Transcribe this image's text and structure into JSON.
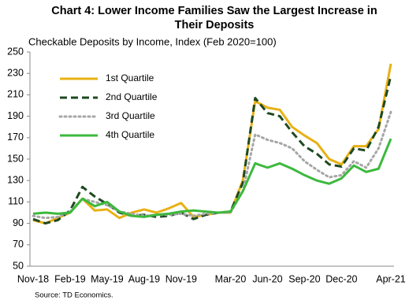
{
  "chart_data": {
    "type": "line",
    "title": [
      "Chart 4: Lower Income Families  Saw the Largest Increase in",
      "Their Deposits"
    ],
    "subtitle": "Checkable Deposits by Income, Index (Feb 2020=100)",
    "source": "Source:  TD Economics.",
    "categories": [
      "Nov-18",
      null,
      null,
      "Feb-19",
      null,
      null,
      "May-19",
      null,
      null,
      "Aug-19",
      null,
      null,
      "Nov-19",
      null,
      null,
      null,
      "Mar-20",
      null,
      null,
      "Jun-20",
      null,
      null,
      "Sep-20",
      null,
      null,
      "Dec-20",
      null,
      null,
      null,
      "Apr-21"
    ],
    "series": [
      {
        "name": "1st Quartile",
        "color": "#e8b115",
        "style": "solid",
        "values": [
          93,
          90,
          95,
          100,
          113,
          102,
          103,
          95,
          100,
          103,
          100,
          104,
          109,
          96,
          98,
          100,
          100,
          130,
          204,
          198,
          196,
          180,
          172,
          165,
          150,
          145,
          162,
          162,
          178,
          239
        ]
      },
      {
        "name": "2nd Quartile",
        "color": "#1e4a22",
        "style": "dashed",
        "values": [
          94,
          90,
          93,
          102,
          124,
          115,
          108,
          100,
          97,
          98,
          96,
          97,
          100,
          94,
          98,
          100,
          101,
          128,
          207,
          193,
          190,
          175,
          162,
          155,
          145,
          143,
          160,
          158,
          180,
          228
        ]
      },
      {
        "name": "3rd Quartile",
        "color": "#a6a6a6",
        "style": "dotted",
        "values": [
          97,
          95,
          96,
          101,
          113,
          110,
          107,
          101,
          99,
          97,
          98,
          98,
          99,
          97,
          99,
          100,
          100,
          120,
          173,
          168,
          165,
          160,
          148,
          140,
          133,
          135,
          148,
          142,
          160,
          194
        ]
      },
      {
        "name": "4th Quartile",
        "color": "#3cb93c",
        "style": "solid",
        "values": [
          99,
          100,
          99,
          100,
          113,
          106,
          110,
          101,
          97,
          96,
          98,
          99,
          101,
          102,
          101,
          100,
          101,
          120,
          146,
          142,
          146,
          141,
          135,
          130,
          127,
          132,
          144,
          138,
          141,
          169
        ]
      }
    ],
    "ylim": [
      50,
      250
    ],
    "yticks": [
      50,
      70,
      90,
      110,
      130,
      150,
      170,
      190,
      210,
      230,
      250
    ],
    "grid": false
  }
}
